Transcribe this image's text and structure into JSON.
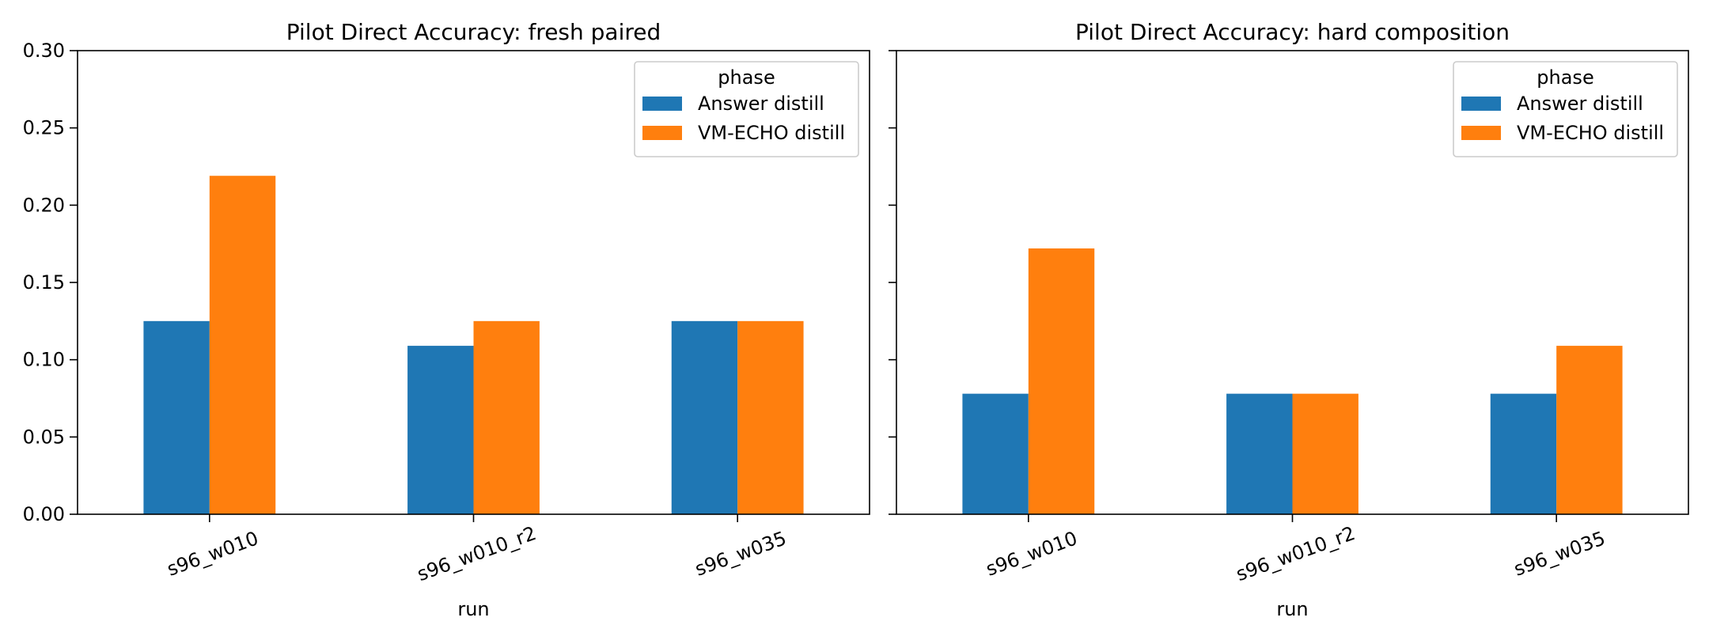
{
  "chart_data": [
    {
      "type": "bar",
      "title": "Pilot Direct Accuracy: fresh paired",
      "xlabel": "run",
      "ylabel": "",
      "categories": [
        "s96_w010",
        "s96_w010_r2",
        "s96_w035"
      ],
      "ylim": [
        0,
        0.3
      ],
      "yticks": [
        "0.00",
        "0.05",
        "0.10",
        "0.15",
        "0.20",
        "0.25",
        "0.30"
      ],
      "legend": {
        "title": "phase",
        "position": "top-right"
      },
      "series": [
        {
          "name": "Answer distill",
          "color": "#1f77b4",
          "values": [
            0.125,
            0.109,
            0.125
          ]
        },
        {
          "name": "VM-ECHO distill",
          "color": "#ff7f0e",
          "values": [
            0.219,
            0.125,
            0.125
          ]
        }
      ]
    },
    {
      "type": "bar",
      "title": "Pilot Direct Accuracy: hard composition",
      "xlabel": "run",
      "ylabel": "",
      "categories": [
        "s96_w010",
        "s96_w010_r2",
        "s96_w035"
      ],
      "ylim": [
        0,
        0.3
      ],
      "shared_y": true,
      "legend": {
        "title": "phase",
        "position": "top-right"
      },
      "series": [
        {
          "name": "Answer distill",
          "color": "#1f77b4",
          "values": [
            0.078,
            0.078,
            0.078
          ]
        },
        {
          "name": "VM-ECHO distill",
          "color": "#ff7f0e",
          "values": [
            0.172,
            0.078,
            0.109
          ]
        }
      ]
    }
  ]
}
